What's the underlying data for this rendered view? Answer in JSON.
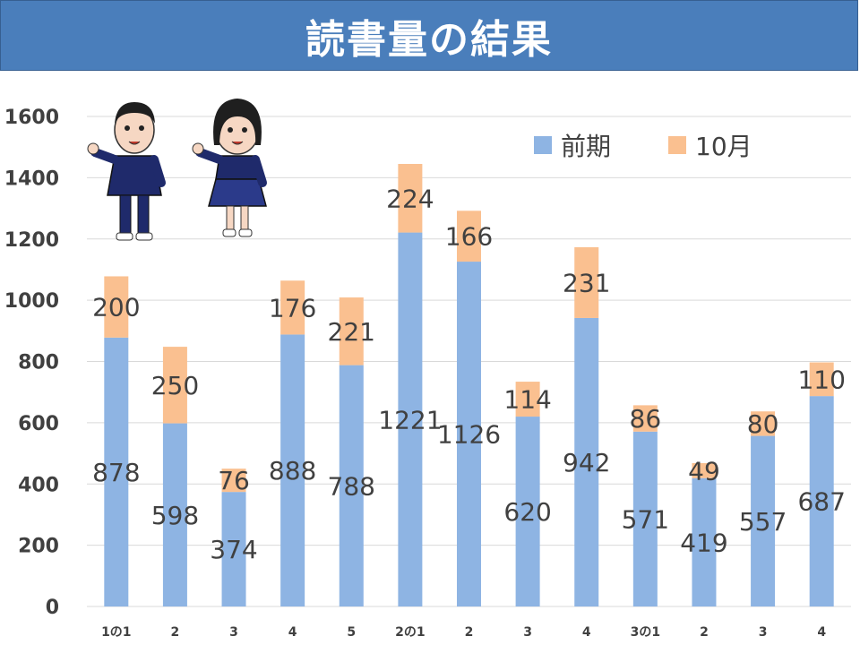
{
  "title": "読書量の結果",
  "colors": {
    "title_bg": "#4a7ebb",
    "series_1": "#8eb4e3",
    "series_2": "#fac090",
    "grid": "#d9d9d9",
    "text": "#404040"
  },
  "chart_data": {
    "type": "bar",
    "stacked": true,
    "categories": [
      "1の1",
      "2",
      "3",
      "4",
      "5",
      "2の1",
      "2",
      "3",
      "4",
      "3の1",
      "2",
      "3",
      "4"
    ],
    "series": [
      {
        "name": "前期",
        "values": [
          878,
          598,
          374,
          888,
          788,
          1221,
          1126,
          620,
          942,
          571,
          419,
          557,
          687
        ]
      },
      {
        "name": "10月",
        "values": [
          200,
          250,
          76,
          176,
          221,
          224,
          166,
          114,
          231,
          86,
          49,
          80,
          110
        ]
      }
    ],
    "ylim": [
      0,
      1600
    ],
    "yticks": [
      0,
      200,
      400,
      600,
      800,
      1000,
      1200,
      1400,
      1600
    ],
    "grid": true,
    "legend": "top-right"
  }
}
